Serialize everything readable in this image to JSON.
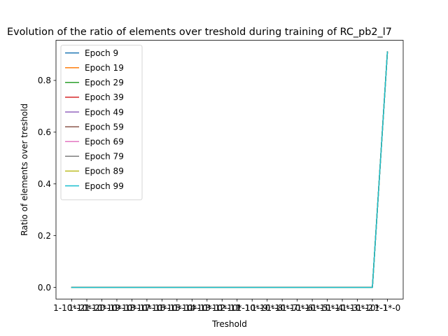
{
  "chart_data": {
    "type": "line",
    "title": "Evolution of the ratio of elements over treshold during training of RC_pb2_l7",
    "xlabel": "Treshold",
    "ylabel": "Ratio of elements over treshold",
    "categories": [
      "1-10^-21",
      "1-10^-20",
      "1-10^-19",
      "1-10^-18",
      "1-10^-17",
      "1-10^-16",
      "1-10^-15",
      "1-10^-14",
      "1-10^-13",
      "1-10^-12",
      "1-10^-11",
      "1-10^-10",
      "1-10^-9",
      "1-10^-8",
      "1-10^-7",
      "1-10^-6",
      "1-10^-5",
      "1-10^-4",
      "1-10^-3",
      "1-10^-2",
      "1-10^-1",
      "1-1*-0"
    ],
    "tick_labels": [
      "1-10*-21",
      "1-10*-20",
      "1-10*-19",
      "1-10*-18",
      "1-10*-17",
      "1-10*-16",
      "1-10*-15",
      "1-10*-14",
      "1-10*-13",
      "1-10*-12",
      "1-10*-11",
      "1-10*-10",
      "1-10*-9",
      "1-10*-8",
      "1-10*-7",
      "1-10*-6",
      "1-10*-5",
      "1-10*-4",
      "1-10*-3",
      "1-10*-2",
      "1-10*-1",
      "1-1*-0"
    ],
    "ylim": [
      -0.045,
      0.955
    ],
    "yticks": [
      0.0,
      0.2,
      0.4,
      0.6,
      0.8
    ],
    "grid": false,
    "legend_position": "top-left",
    "series": [
      {
        "name": "Epoch 9",
        "color": "#1f77b4",
        "values": [
          0,
          0,
          0,
          0,
          0,
          0,
          0,
          0,
          0,
          0,
          0,
          0,
          0,
          0,
          0,
          0,
          0,
          0,
          0,
          0,
          0,
          0.91
        ]
      },
      {
        "name": "Epoch 19",
        "color": "#ff7f0e",
        "values": [
          0,
          0,
          0,
          0,
          0,
          0,
          0,
          0,
          0,
          0,
          0,
          0,
          0,
          0,
          0,
          0,
          0,
          0,
          0,
          0,
          0,
          0.91
        ]
      },
      {
        "name": "Epoch 29",
        "color": "#2ca02c",
        "values": [
          0,
          0,
          0,
          0,
          0,
          0,
          0,
          0,
          0,
          0,
          0,
          0,
          0,
          0,
          0,
          0,
          0,
          0,
          0,
          0,
          0,
          0.91
        ]
      },
      {
        "name": "Epoch 39",
        "color": "#d62728",
        "values": [
          0,
          0,
          0,
          0,
          0,
          0,
          0,
          0,
          0,
          0,
          0,
          0,
          0,
          0,
          0,
          0,
          0,
          0,
          0,
          0,
          0,
          0.91
        ]
      },
      {
        "name": "Epoch 49",
        "color": "#9467bd",
        "values": [
          0,
          0,
          0,
          0,
          0,
          0,
          0,
          0,
          0,
          0,
          0,
          0,
          0,
          0,
          0,
          0,
          0,
          0,
          0,
          0,
          0,
          0.91
        ]
      },
      {
        "name": "Epoch 59",
        "color": "#8c564b",
        "values": [
          0,
          0,
          0,
          0,
          0,
          0,
          0,
          0,
          0,
          0,
          0,
          0,
          0,
          0,
          0,
          0,
          0,
          0,
          0,
          0,
          0,
          0.91
        ]
      },
      {
        "name": "Epoch 69",
        "color": "#e377c2",
        "values": [
          0,
          0,
          0,
          0,
          0,
          0,
          0,
          0,
          0,
          0,
          0,
          0,
          0,
          0,
          0,
          0,
          0,
          0,
          0,
          0,
          0,
          0.91
        ]
      },
      {
        "name": "Epoch 79",
        "color": "#7f7f7f",
        "values": [
          0,
          0,
          0,
          0,
          0,
          0,
          0,
          0,
          0,
          0,
          0,
          0,
          0,
          0,
          0,
          0,
          0,
          0,
          0,
          0,
          0,
          0.91
        ]
      },
      {
        "name": "Epoch 89",
        "color": "#bcbd22",
        "values": [
          0,
          0,
          0,
          0,
          0,
          0,
          0,
          0,
          0,
          0,
          0,
          0,
          0,
          0,
          0,
          0,
          0,
          0,
          0,
          0,
          0,
          0.91
        ]
      },
      {
        "name": "Epoch 99",
        "color": "#17becf",
        "values": [
          0,
          0,
          0,
          0,
          0,
          0,
          0,
          0,
          0,
          0,
          0,
          0,
          0,
          0,
          0,
          0,
          0,
          0,
          0,
          0,
          0,
          0.91
        ]
      }
    ]
  }
}
